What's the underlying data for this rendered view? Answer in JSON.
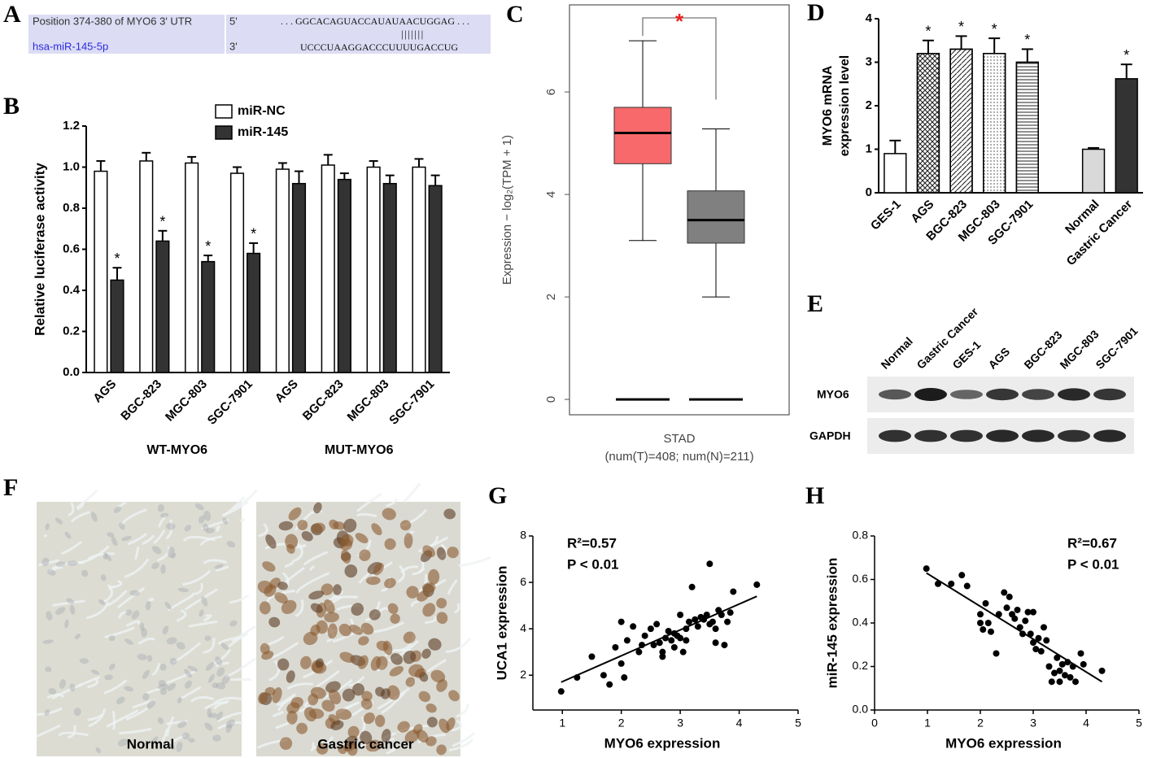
{
  "panel_labels": [
    "A",
    "B",
    "C",
    "D",
    "E",
    "F",
    "G",
    "H"
  ],
  "alignment": {
    "rows": [
      {
        "name": "Position 374-380 of MYO6 3' UTR",
        "end": "5'",
        "sequence": ". . . GGCACAGUACCAUAUAACUGGAG . . ."
      },
      {
        "name": "hsa-miR-145-5p",
        "end": "3'",
        "sequence": "UCCCUAAGGACCCUUUUGACCUG"
      }
    ],
    "pairing": "|||||||"
  },
  "western_blot": {
    "lanes": [
      "Normal",
      "Gastric Cancer",
      "GES-1",
      "AGS",
      "BGC-823",
      "MGC-803",
      "SGC-7901"
    ],
    "rows": [
      "MYO6",
      "GAPDH"
    ]
  },
  "ihc": {
    "images": [
      {
        "label": "Normal"
      },
      {
        "label": "Gastric cancer"
      }
    ]
  },
  "chart_data": [
    {
      "type": "bar",
      "ylabel": "Relative luciferase activity",
      "categories": [
        "AGS",
        "BGC-823",
        "MGC-803",
        "SGC-7901",
        "AGS",
        "BGC-823",
        "MGC-803",
        "SGC-7901"
      ],
      "group_labels": [
        "WT-MYO6",
        "MUT-MYO6"
      ],
      "series": [
        {
          "name": "miR-NC",
          "color": "#ffffff",
          "values": [
            0.98,
            1.03,
            1.02,
            0.97,
            0.99,
            1.01,
            1.0,
            1.0
          ],
          "errors": [
            0.05,
            0.04,
            0.03,
            0.03,
            0.03,
            0.05,
            0.03,
            0.04
          ]
        },
        {
          "name": "miR-145",
          "color": "#333333",
          "values": [
            0.45,
            0.64,
            0.54,
            0.58,
            0.92,
            0.94,
            0.92,
            0.91
          ],
          "errors": [
            0.06,
            0.05,
            0.03,
            0.05,
            0.06,
            0.03,
            0.04,
            0.05
          ],
          "significance": [
            "*",
            "*",
            "*",
            "*",
            null,
            null,
            null,
            null
          ]
        }
      ],
      "ylim": [
        0,
        1.2
      ],
      "yticks": [
        {
          "value": 0,
          "label": "0.0"
        },
        {
          "value": 0.2,
          "label": "0.2"
        },
        {
          "value": 0.4,
          "label": "0.4"
        },
        {
          "value": 0.6,
          "label": "0.6"
        },
        {
          "value": 0.8,
          "label": "0.8"
        },
        {
          "value": 1,
          "label": "1.0"
        },
        {
          "value": 1.2,
          "label": "1.2"
        }
      ]
    },
    {
      "type": "box",
      "ylabel": "Expression − log₂(TPM + 1)",
      "xlabel": "STAD",
      "xlabel_note": "(num(T)=408; num(N)=211)",
      "boxes": [
        {
          "color": "#f8696b",
          "whisker_low": 3.1,
          "q1": 4.6,
          "median": 5.2,
          "q3": 5.7,
          "whisker_high": 7.0
        },
        {
          "color": "#808080",
          "whisker_low": 2.0,
          "q1": 3.05,
          "median": 3.5,
          "q3": 4.07,
          "whisker_high": 5.28
        }
      ],
      "significance": "*",
      "ylim": [
        -0.3,
        7.7
      ],
      "yticks": [
        0,
        2,
        4,
        6
      ]
    },
    {
      "type": "bar",
      "ylabel": [
        "MYO6 mRNA",
        "expression level"
      ],
      "categories": [
        "GES-1",
        "AGS",
        "BGC-823",
        "MGC-803",
        "SGC-7901",
        null,
        "Normal",
        "Gastric Cancer"
      ],
      "values": [
        0.9,
        3.2,
        3.3,
        3.2,
        3.0,
        null,
        1.0,
        2.62
      ],
      "errors": [
        0.3,
        0.3,
        0.3,
        0.35,
        0.3,
        null,
        0.03,
        0.33
      ],
      "colors": [
        "#ffffff",
        "#ffffff",
        "#ffffff",
        "#ffffff",
        "#ffffff",
        null,
        "#d9d9d9",
        "#333333"
      ],
      "hatches": [
        null,
        "crosshatch",
        "diagonal",
        "dots",
        "horizontal",
        null,
        null,
        null
      ],
      "significance": [
        null,
        "*",
        "*",
        "*",
        "*",
        null,
        null,
        "*"
      ],
      "ylim": [
        0,
        4
      ],
      "yticks": [
        0,
        1,
        2,
        3,
        4
      ]
    },
    {
      "type": "scatter",
      "xlabel": "MYO6 expression",
      "ylabel": "UCA1 expression",
      "annotations": [
        "R²=0.57",
        "P < 0.01"
      ],
      "annotation_corner": "upper left",
      "x": [
        0.98,
        1.25,
        1.5,
        1.7,
        1.8,
        1.9,
        2.0,
        2.0,
        2.05,
        2.1,
        2.2,
        2.3,
        2.4,
        2.5,
        2.55,
        2.6,
        2.65,
        2.7,
        2.7,
        2.75,
        2.8,
        2.85,
        2.9,
        2.9,
        2.95,
        3.0,
        3.0,
        3.05,
        3.1,
        3.15,
        3.2,
        3.25,
        3.3,
        3.35,
        3.4,
        3.45,
        3.5,
        3.5,
        3.55,
        3.6,
        3.65,
        3.7,
        3.75,
        3.8,
        3.9,
        4.3,
        3.85,
        3.1,
        2.35,
        3.6
      ],
      "values": [
        1.3,
        1.9,
        2.8,
        2.0,
        1.6,
        3.2,
        4.3,
        2.5,
        1.9,
        3.5,
        4.1,
        3.0,
        3.7,
        4.0,
        3.3,
        4.2,
        3.4,
        3.0,
        2.8,
        3.6,
        3.9,
        3.5,
        3.2,
        3.8,
        3.7,
        4.6,
        3.6,
        3.0,
        4.0,
        4.3,
        5.8,
        4.4,
        4.1,
        4.5,
        4.4,
        4.6,
        6.8,
        4.2,
        4.3,
        3.4,
        4.8,
        4.6,
        3.3,
        4.3,
        5.6,
        5.9,
        4.7,
        3.5,
        3.3,
        4.0
      ],
      "fit": {
        "x": [
          0.98,
          4.3
        ],
        "values": [
          1.7,
          5.4
        ]
      },
      "xlim": [
        0.5,
        5
      ],
      "ylim": [
        0.5,
        8
      ],
      "xticks": [
        1,
        2,
        3,
        4,
        5
      ],
      "yticks": [
        2,
        4,
        6,
        8
      ]
    },
    {
      "type": "scatter",
      "xlabel": "MYO6 expression",
      "ylabel": "miR-145 expression",
      "annotations": [
        "R²=0.67",
        "P < 0.01"
      ],
      "annotation_corner": "upper right",
      "x": [
        0.98,
        1.2,
        1.45,
        1.65,
        1.75,
        2.0,
        2.0,
        2.05,
        2.1,
        2.15,
        2.2,
        2.3,
        2.35,
        2.45,
        2.5,
        2.55,
        2.6,
        2.65,
        2.7,
        2.75,
        2.8,
        2.85,
        2.9,
        2.95,
        3.0,
        3.0,
        3.05,
        3.1,
        3.15,
        3.2,
        3.25,
        3.3,
        3.35,
        3.4,
        3.45,
        3.5,
        3.55,
        3.6,
        3.65,
        3.7,
        3.75,
        3.8,
        3.9,
        3.95,
        4.3,
        3.5
      ],
      "values": [
        0.65,
        0.58,
        0.58,
        0.62,
        0.57,
        0.44,
        0.4,
        0.37,
        0.49,
        0.4,
        0.36,
        0.26,
        0.44,
        0.54,
        0.47,
        0.52,
        0.44,
        0.42,
        0.46,
        0.38,
        0.35,
        0.41,
        0.45,
        0.35,
        0.45,
        0.31,
        0.28,
        0.33,
        0.27,
        0.38,
        0.32,
        0.2,
        0.13,
        0.17,
        0.24,
        0.18,
        0.21,
        0.16,
        0.22,
        0.15,
        0.2,
        0.13,
        0.26,
        0.21,
        0.18,
        0.13
      ],
      "fit": {
        "x": [
          0.98,
          4.3
        ],
        "values": [
          0.63,
          0.13
        ]
      },
      "xlim": [
        0,
        5
      ],
      "ylim": [
        0,
        0.8
      ],
      "xticks": [
        0,
        1,
        2,
        3,
        4,
        5
      ],
      "yticks": [
        {
          "value": 0,
          "label": "0.0"
        },
        {
          "value": 0.2,
          "label": "0.2"
        },
        {
          "value": 0.4,
          "label": "0.4"
        },
        {
          "value": 0.6,
          "label": "0.6"
        },
        {
          "value": 0.8,
          "label": "0.8"
        }
      ]
    }
  ]
}
